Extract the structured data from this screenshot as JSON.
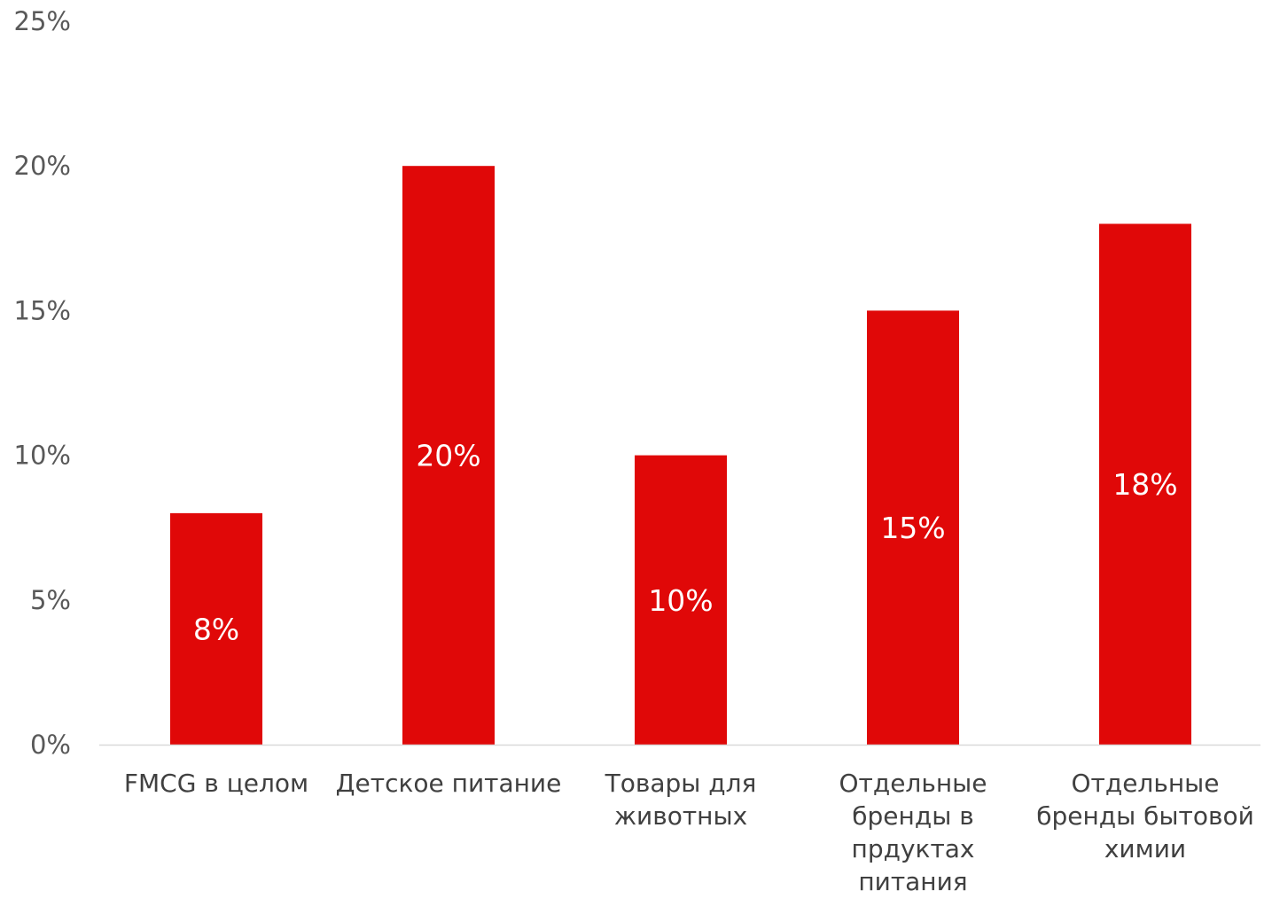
{
  "chart_data": {
    "type": "bar",
    "categories": [
      [
        "FMCG в целом"
      ],
      [
        "Детское питание"
      ],
      [
        "Товары для",
        "животных"
      ],
      [
        "Отдельные",
        "бренды в",
        "прдуктах",
        "питания"
      ],
      [
        "Отдельные",
        "бренды бытовой",
        "химии"
      ]
    ],
    "values": [
      8,
      20,
      10,
      15,
      18
    ],
    "data_labels": [
      "8%",
      "20%",
      "10%",
      "15%",
      "18%"
    ],
    "y_ticks": [
      0,
      5,
      10,
      15,
      20,
      25
    ],
    "y_tick_labels": [
      "0%",
      "5%",
      "10%",
      "15%",
      "20%",
      "25%"
    ],
    "ylim": [
      0,
      25
    ],
    "grid": false,
    "legend": "none",
    "title": "",
    "xlabel": "",
    "ylabel": ""
  },
  "colors": {
    "bar": "#e00808",
    "axis_line": "#d9d9d9",
    "tick_text": "#595959",
    "category_text": "#404040",
    "data_label_text": "#ffffff"
  }
}
